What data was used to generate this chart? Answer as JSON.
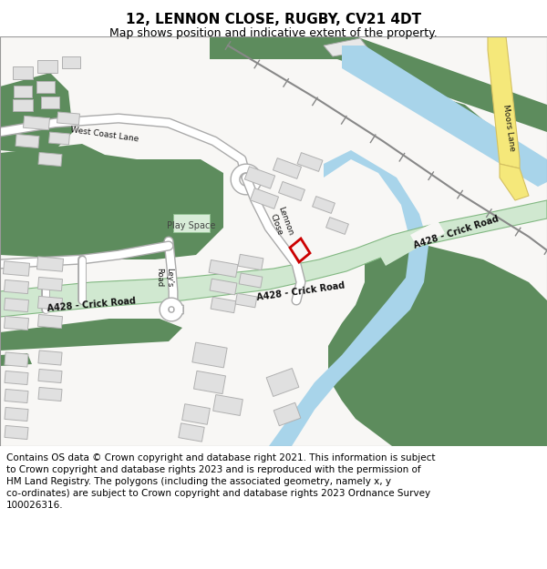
{
  "title_line1": "12, LENNON CLOSE, RUGBY, CV21 4DT",
  "title_line2": "Map shows position and indicative extent of the property.",
  "footer_lines": [
    "Contains OS data © Crown copyright and database right 2021. This information is subject",
    "to Crown copyright and database rights 2023 and is reproduced with the permission of",
    "HM Land Registry. The polygons (including the associated geometry, namely x, y",
    "co-ordinates) are subject to Crown copyright and database rights 2023 Ordnance Survey",
    "100026316."
  ],
  "bg_color": "#ffffff",
  "map_bg": "#f8f7f5",
  "green_dark": "#5d8c5d",
  "green_light": "#d0e8d0",
  "green_light_edge": "#82b882",
  "blue_canal": "#a8d4ea",
  "yellow_fill": "#f5e87a",
  "yellow_edge": "#d4c060",
  "bldg_fill": "#e0e0e0",
  "bldg_edge": "#b0b0b0",
  "red_plot": "#cc0000",
  "railway_color": "#555555",
  "title_fontsize": 11,
  "subtitle_fontsize": 9,
  "footer_fontsize": 7.5,
  "label_fontsize": 7
}
